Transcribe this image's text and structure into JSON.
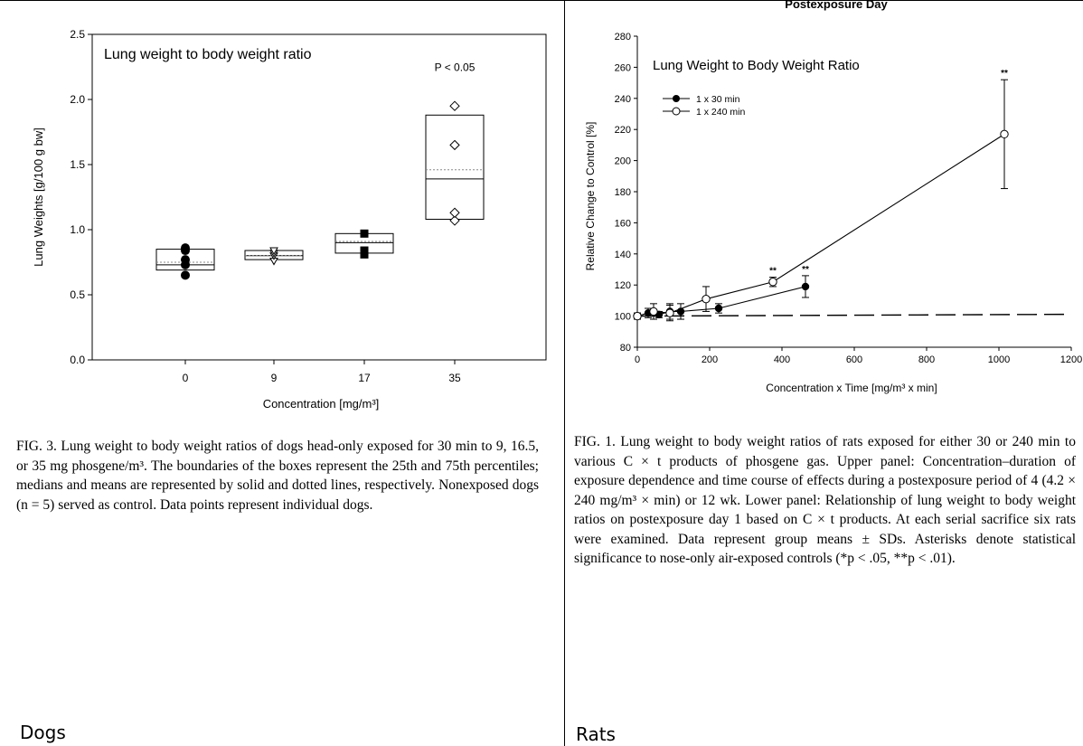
{
  "panels": {
    "dogs": {
      "caption": "FIG. 3. Lung weight to body weight ratios of dogs head-only exposed for 30 min to 9, 16.5, or 35 mg phosgene/m³. The boundaries of the boxes represent the 25th and 75th percentiles; medians and means are represented by solid and dotted lines, respectively. Nonexposed dogs (n = 5) served as control. Data points represent individual dogs.",
      "footer_label": "Dogs"
    },
    "rats": {
      "partial_top_text": "Postexposure Day",
      "caption": "FIG. 1. Lung weight to body weight ratios of rats exposed for either 30 or 240 min to various C × t products of phosgene gas. Upper panel: Concentration–duration of exposure dependence and time course of effects during a postexposure period of 4 (4.2 × 240 mg/m³ × min) or 12 wk. Lower panel: Relationship of lung weight to body weight ratios on postexposure day 1 based on C × t products. At each serial sacrifice six rats were examined. Data represent group means ± SDs. Asterisks denote statistical significance to nose-only air-exposed controls (*p < .05, **p < .01).",
      "footer_label": "Rats"
    }
  },
  "chart_data": [
    {
      "type": "box",
      "title": "Lung weight to body weight ratio",
      "xlabel": "Concentration [mg/m³]",
      "ylabel": "Lung Weights [g/100 g bw]",
      "ylim": [
        0.0,
        2.5
      ],
      "yticks": [
        "0.0",
        "0.5",
        "1.0",
        "1.5",
        "2.0",
        "2.5"
      ],
      "categories": [
        "0",
        "9",
        "17",
        "35"
      ],
      "boxes": [
        {
          "q1": 0.69,
          "q3": 0.85,
          "median": 0.73,
          "mean": 0.75
        },
        {
          "q1": 0.77,
          "q3": 0.84,
          "median": 0.8,
          "mean": 0.8
        },
        {
          "q1": 0.82,
          "q3": 0.97,
          "median": 0.9,
          "mean": 0.91
        },
        {
          "q1": 1.08,
          "q3": 1.88,
          "median": 1.39,
          "mean": 1.46
        }
      ],
      "points": [
        {
          "category": "0",
          "marker": "filled-circle",
          "values": [
            0.65,
            0.73,
            0.77,
            0.84,
            0.86
          ]
        },
        {
          "category": "9",
          "marker": "open-triangle",
          "values": [
            0.76,
            0.8,
            0.82,
            0.84
          ]
        },
        {
          "category": "17",
          "marker": "filled-square",
          "values": [
            0.81,
            0.84,
            0.97
          ]
        },
        {
          "category": "35",
          "marker": "open-diamond",
          "values": [
            1.07,
            1.13,
            1.65,
            1.95
          ]
        }
      ],
      "annotations": [
        {
          "text": "P < 0.05",
          "category": "35",
          "y": 2.22
        }
      ]
    },
    {
      "type": "line",
      "title": "Lung Weight to Body Weight Ratio",
      "xlabel": "Concentration x Time [mg/m³ x min]",
      "ylabel": "Relative Change to Control [%]",
      "xlim": [
        0,
        1200
      ],
      "ylim": [
        80,
        280
      ],
      "xticks": [
        "0",
        "200",
        "400",
        "600",
        "800",
        "1000",
        "1200"
      ],
      "yticks": [
        "80",
        "100",
        "120",
        "140",
        "160",
        "180",
        "200",
        "220",
        "240",
        "260",
        "280"
      ],
      "legend": "top-left",
      "reference_line": {
        "y": 100,
        "style": "dashed"
      },
      "series": [
        {
          "name": "1 x 30 min",
          "marker": "filled-circle",
          "x": [
            0,
            30,
            60,
            90,
            120,
            225,
            465
          ],
          "y": [
            100,
            102,
            101,
            103,
            103,
            105,
            119
          ],
          "err": [
            2,
            3,
            2,
            5,
            5,
            3,
            7
          ],
          "significance": [
            "",
            "",
            "",
            "",
            "",
            "",
            "**"
          ]
        },
        {
          "name": "1 x 240 min",
          "marker": "open-circle",
          "x": [
            0,
            45,
            90,
            190,
            375,
            1015
          ],
          "y": [
            100,
            103,
            102,
            111,
            122,
            217
          ],
          "err": [
            2,
            5,
            5,
            8,
            3,
            35
          ],
          "significance": [
            "",
            "",
            "",
            "",
            "**",
            "**"
          ]
        }
      ]
    }
  ]
}
